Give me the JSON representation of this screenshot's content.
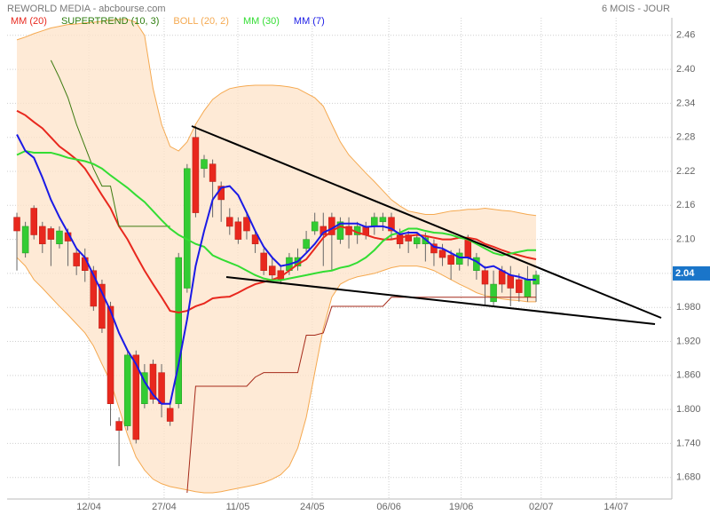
{
  "chart_data": {
    "type": "candlestick",
    "title": "REWORLD MEDIA - abcbourse.com",
    "subtitle": "6 MOIS - JOUR",
    "x": [
      0,
      1,
      2,
      3,
      4,
      5,
      6,
      7,
      8,
      9,
      10,
      11,
      12,
      13,
      14,
      15,
      16,
      17,
      18,
      19,
      20,
      21,
      22,
      23,
      24,
      25,
      26,
      27,
      28,
      29,
      30,
      31,
      32,
      33,
      34,
      35,
      36,
      37,
      38,
      39,
      40,
      41,
      42,
      43,
      44,
      45,
      46,
      47,
      48,
      49,
      50,
      51,
      52,
      53,
      54,
      55,
      56,
      57,
      58,
      59,
      60,
      61
    ],
    "xlim": [
      -1.15,
      76.95
    ],
    "xticks": [
      {
        "value": 8.45,
        "label": "12/04"
      },
      {
        "value": 17.3,
        "label": "27/04"
      },
      {
        "value": 25.96,
        "label": "11/05"
      },
      {
        "value": 34.7,
        "label": "24/05"
      },
      {
        "value": 43.7,
        "label": "06/06"
      },
      {
        "value": 52.2,
        "label": "19/06"
      },
      {
        "value": 61.6,
        "label": "02/07"
      },
      {
        "value": 70.4,
        "label": "14/07"
      }
    ],
    "ylim": [
      1.642,
      2.491
    ],
    "yticks": [
      2.46,
      {
        "value": 2.4,
        "label": "2.40"
      },
      2.34,
      2.28,
      2.22,
      2.16,
      {
        "value": 2.1,
        "label": "2.10"
      },
      2.04,
      {
        "value": 1.98,
        "label": "1.980"
      },
      {
        "value": 1.92,
        "label": "1.920"
      },
      {
        "value": 1.86,
        "label": "1.860"
      },
      {
        "value": 1.8,
        "label": "1.800"
      },
      {
        "value": 1.74,
        "label": "1.740"
      },
      {
        "value": 1.68,
        "label": "1.680"
      }
    ],
    "grid": true,
    "last_price": 2.04,
    "last_price_color": "#1a75c9",
    "candles": {
      "up_color": "#33cc33",
      "down_color": "#e8281e",
      "open": [
        2.139,
        2.076,
        2.155,
        2.123,
        2.119,
        2.092,
        2.112,
        2.076,
        2.068,
        2.045,
        2.021,
        1.982,
        1.779,
        1.771,
        1.896,
        1.81,
        1.88,
        1.865,
        1.802,
        1.81,
        2.014,
        2.28,
        2.225,
        2.233,
        2.194,
        2.139,
        2.131,
        2.139,
        2.108,
        2.076,
        2.053,
        2.045,
        2.045,
        2.053,
        2.084,
        2.115,
        2.123,
        2.139,
        2.1,
        2.123,
        2.108,
        2.123,
        2.123,
        2.131,
        2.139,
        2.108,
        2.108,
        2.092,
        2.092,
        2.092,
        2.081,
        2.072,
        2.056,
        2.1,
        2.045,
        2.045,
        1.99,
        2.045,
        2.037,
        2.029,
        1.998,
        2.021
      ],
      "high": [
        2.147,
        2.131,
        2.16,
        2.131,
        2.123,
        2.123,
        2.119,
        2.084,
        2.084,
        2.053,
        2.029,
        1.99,
        1.786,
        1.904,
        1.904,
        1.88,
        1.888,
        1.88,
        1.81,
        2.076,
        2.233,
        2.3,
        2.249,
        2.241,
        2.202,
        2.155,
        2.139,
        2.147,
        2.115,
        2.084,
        2.068,
        2.053,
        2.076,
        2.084,
        2.115,
        2.147,
        2.147,
        2.147,
        2.139,
        2.139,
        2.131,
        2.131,
        2.147,
        2.147,
        2.147,
        2.119,
        2.115,
        2.112,
        2.112,
        2.1,
        2.092,
        2.081,
        2.084,
        2.108,
        2.076,
        2.053,
        2.045,
        2.053,
        2.053,
        2.04,
        2.053,
        2.045
      ],
      "low": [
        2.045,
        2.068,
        2.1,
        2.076,
        2.053,
        2.084,
        2.053,
        2.037,
        2.025,
        1.974,
        1.935,
        1.771,
        1.7,
        1.763,
        1.74,
        1.802,
        1.81,
        1.786,
        1.771,
        1.802,
        2.006,
        2.139,
        2.209,
        2.139,
        2.131,
        2.108,
        2.092,
        2.1,
        2.076,
        2.037,
        2.029,
        2.021,
        2.037,
        2.045,
        2.076,
        2.108,
        2.053,
        2.045,
        2.092,
        2.084,
        2.092,
        2.1,
        2.108,
        2.115,
        2.1,
        2.084,
        2.076,
        2.084,
        2.061,
        2.053,
        2.053,
        2.029,
        2.045,
        2.053,
        2.029,
        1.982,
        1.982,
        2.006,
        1.982,
        1.99,
        1.99,
        1.99
      ],
      "close": [
        2.115,
        2.123,
        2.108,
        2.092,
        2.1,
        2.115,
        2.097,
        2.053,
        2.045,
        1.982,
        1.943,
        1.81,
        1.763,
        1.896,
        1.747,
        1.865,
        1.818,
        1.81,
        1.779,
        2.068,
        2.225,
        2.147,
        2.241,
        2.202,
        2.17,
        2.123,
        2.1,
        2.115,
        2.092,
        2.045,
        2.037,
        2.029,
        2.068,
        2.068,
        2.1,
        2.131,
        2.108,
        2.108,
        2.131,
        2.108,
        2.123,
        2.108,
        2.139,
        2.139,
        2.115,
        2.092,
        2.097,
        2.103,
        2.103,
        2.076,
        2.068,
        2.056,
        2.076,
        2.068,
        2.068,
        2.021,
        2.021,
        2.021,
        2.014,
        2.006,
        2.029,
        2.037
      ]
    },
    "series": [
      {
        "name": "MM (20)",
        "color": "#e8281e",
        "values": [
          2.327,
          2.319,
          2.307,
          2.296,
          2.28,
          2.264,
          2.253,
          2.241,
          2.225,
          2.202,
          2.178,
          2.155,
          2.123,
          2.1,
          2.072,
          2.045,
          2.021,
          1.998,
          1.974,
          1.971,
          1.974,
          1.982,
          1.987,
          1.996,
          1.998,
          1.999,
          2.006,
          2.014,
          2.021,
          2.025,
          2.029,
          2.034,
          2.045,
          2.056,
          2.065,
          2.084,
          2.103,
          2.115,
          2.123,
          2.119,
          2.112,
          2.108,
          2.103,
          2.1,
          2.1,
          2.103,
          2.106,
          2.108,
          2.106,
          2.103,
          2.1,
          2.1,
          2.103,
          2.103,
          2.1,
          2.092,
          2.087,
          2.081,
          2.076,
          2.072,
          2.068,
          2.065
        ]
      },
      {
        "name": "SUPERTREND (10, 3)",
        "color": "#2e7d0e",
        "piece_colors": [
          "#3c7a10",
          "#a52a1a"
        ],
        "values": [
          null,
          null,
          null,
          null,
          2.416,
          2.385,
          2.35,
          2.303,
          2.264,
          2.225,
          2.194,
          2.194,
          2.123,
          2.123,
          2.123,
          2.123,
          2.123,
          2.123,
          2.123,
          null,
          1.653,
          1.841,
          1.841,
          1.841,
          1.841,
          1.841,
          1.841,
          1.841,
          1.857,
          1.865,
          1.865,
          1.865,
          1.865,
          1.865,
          1.931,
          1.931,
          1.935,
          1.982,
          1.982,
          1.982,
          1.982,
          1.982,
          1.982,
          1.982,
          1.998,
          1.998,
          1.998,
          1.998,
          1.998,
          1.998,
          1.998,
          1.998,
          1.998,
          1.998,
          1.998,
          1.998,
          1.998,
          1.998,
          1.998,
          1.998,
          1.998,
          1.998
        ]
      },
      {
        "name": "BOLL (20, 2)",
        "color": "#f5a950",
        "fill": "#fde3c8",
        "upper": [
          2.452,
          2.457,
          2.463,
          2.468,
          2.473,
          2.476,
          2.479,
          2.48,
          2.482,
          2.483,
          2.485,
          2.487,
          2.488,
          2.488,
          2.483,
          2.46,
          2.366,
          2.303,
          2.264,
          2.256,
          2.272,
          2.303,
          2.327,
          2.347,
          2.358,
          2.366,
          2.369,
          2.371,
          2.372,
          2.372,
          2.372,
          2.371,
          2.369,
          2.366,
          2.358,
          2.35,
          2.335,
          2.303,
          2.272,
          2.249,
          2.233,
          2.217,
          2.202,
          2.186,
          2.17,
          2.159,
          2.15,
          2.147,
          2.144,
          2.144,
          2.147,
          2.15,
          2.151,
          2.153,
          2.153,
          2.155,
          2.153,
          2.151,
          2.15,
          2.147,
          2.144,
          2.142
        ],
        "lower": [
          2.068,
          2.053,
          2.029,
          2.014,
          1.998,
          1.982,
          1.967,
          1.951,
          1.935,
          1.912,
          1.88,
          1.849,
          1.802,
          1.755,
          1.716,
          1.693,
          1.677,
          1.669,
          1.664,
          1.661,
          1.658,
          1.655,
          1.653,
          1.653,
          1.655,
          1.658,
          1.661,
          1.664,
          1.667,
          1.671,
          1.677,
          1.685,
          1.7,
          1.732,
          1.786,
          1.865,
          1.943,
          1.998,
          2.021,
          2.029,
          2.034,
          2.037,
          2.04,
          2.045,
          2.05,
          2.053,
          2.053,
          2.053,
          2.05,
          2.045,
          2.037,
          2.029,
          2.021,
          2.014,
          2.006,
          2.001,
          1.998,
          1.995,
          1.993,
          1.992,
          1.99,
          1.99
        ]
      },
      {
        "name": "MM (30)",
        "color": "#33dd33",
        "values": [
          2.249,
          2.256,
          2.253,
          2.253,
          2.253,
          2.249,
          2.244,
          2.241,
          2.238,
          2.233,
          2.225,
          2.213,
          2.202,
          2.191,
          2.178,
          2.166,
          2.15,
          2.134,
          2.119,
          2.108,
          2.1,
          2.092,
          2.087,
          2.072,
          2.065,
          2.059,
          2.053,
          2.045,
          2.037,
          2.031,
          2.028,
          2.028,
          2.031,
          2.034,
          2.037,
          2.04,
          2.043,
          2.045,
          2.05,
          2.053,
          2.059,
          2.068,
          2.081,
          2.097,
          2.108,
          2.112,
          2.119,
          2.119,
          2.115,
          2.112,
          2.111,
          2.108,
          2.103,
          2.1,
          2.092,
          2.084,
          2.076,
          2.072,
          2.075,
          2.078,
          2.081,
          2.081
        ]
      },
      {
        "name": "MM (7)",
        "color": "#1a1ae6",
        "values": [
          2.285,
          2.256,
          2.244,
          2.209,
          2.17,
          2.139,
          2.112,
          2.084,
          2.068,
          2.037,
          2.006,
          1.974,
          1.935,
          1.904,
          1.88,
          1.849,
          1.826,
          1.81,
          1.81,
          1.88,
          1.959,
          2.053,
          2.115,
          2.17,
          2.191,
          2.194,
          2.178,
          2.147,
          2.115,
          2.087,
          2.068,
          2.053,
          2.056,
          2.061,
          2.076,
          2.092,
          2.112,
          2.119,
          2.128,
          2.128,
          2.128,
          2.122,
          2.123,
          2.123,
          2.119,
          2.109,
          2.112,
          2.112,
          2.1,
          2.087,
          2.084,
          2.076,
          2.068,
          2.068,
          2.061,
          2.05,
          2.053,
          2.045,
          2.037,
          2.034,
          2.029,
          2.029
        ]
      }
    ]
  }
}
